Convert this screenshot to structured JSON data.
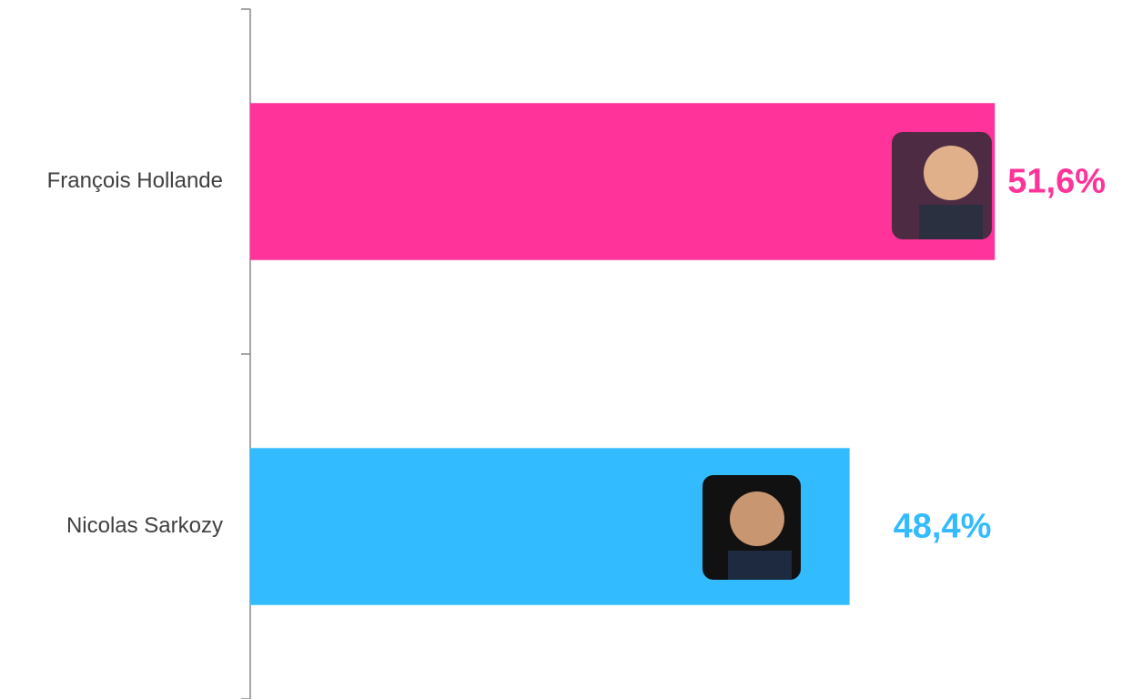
{
  "chart_data": {
    "type": "hbar",
    "categories": [
      "François Hollande",
      "Nicolas Sarkozy"
    ],
    "values": [
      51.6,
      48.4
    ],
    "value_labels": [
      "51,6%",
      "48,4%"
    ],
    "colors": [
      "#ff3399",
      "#33bbff"
    ],
    "xlim": [
      35.2,
      54.4
    ]
  }
}
